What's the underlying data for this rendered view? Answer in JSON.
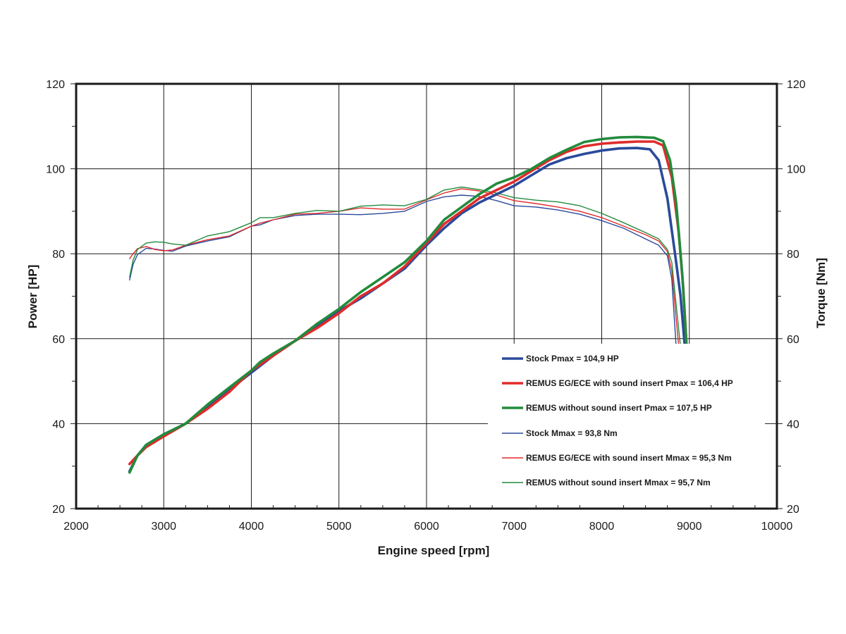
{
  "chart_data": {
    "type": "line",
    "title": "",
    "xlabel": "Engine speed [rpm]",
    "ylabel": "Power [HP]",
    "y2label": "Torque [Nm]",
    "xlim": [
      2000,
      10000
    ],
    "ylim": [
      20,
      120
    ],
    "y2lim": [
      20,
      120
    ],
    "x_ticks": [
      "2000",
      "3000",
      "4000",
      "5000",
      "6000",
      "7000",
      "8000",
      "9000",
      "10000"
    ],
    "y_ticks": [
      "20",
      "40",
      "60",
      "80",
      "100",
      "120"
    ],
    "y2_ticks": [
      "20",
      "40",
      "60",
      "80",
      "100",
      "120"
    ],
    "grid": true,
    "legend_position": "bottom-right",
    "series": [
      {
        "name": "Stock Pmax = 104,9 HP",
        "axis": "left",
        "color": "#2a4a9b",
        "weight": "thick",
        "x": [
          2610,
          2700,
          2800,
          3000,
          3250,
          3500,
          3750,
          4000,
          4250,
          4500,
          4750,
          5000,
          5250,
          5500,
          5750,
          6000,
          6200,
          6400,
          6600,
          6800,
          7000,
          7200,
          7400,
          7600,
          7800,
          8000,
          8200,
          8400,
          8550,
          8650,
          8750,
          8850,
          8900,
          8950
        ],
        "y": [
          28.8,
          32.5,
          35,
          37.5,
          40,
          44,
          48,
          52,
          56,
          59.5,
          63,
          66.5,
          69.5,
          73,
          76.5,
          82,
          86,
          89.5,
          92,
          94,
          96,
          98.5,
          101,
          102.5,
          103.5,
          104.3,
          104.8,
          104.9,
          104.6,
          102,
          93,
          78,
          70,
          58
        ]
      },
      {
        "name": "REMUS EG/ECE with sound insert Pmax = 106,4 HP",
        "axis": "left",
        "color": "#e02b2b",
        "weight": "thick",
        "x": [
          2610,
          2700,
          2800,
          3000,
          3250,
          3500,
          3750,
          4000,
          4250,
          4500,
          4750,
          5000,
          5250,
          5500,
          5750,
          6000,
          6200,
          6400,
          6600,
          6800,
          7000,
          7200,
          7400,
          7600,
          7800,
          8000,
          8200,
          8400,
          8600,
          8700,
          8800,
          8880,
          8930,
          8970
        ],
        "y": [
          30.5,
          32.5,
          34.5,
          37,
          40,
          43.5,
          47.5,
          52.5,
          56,
          59.5,
          62.5,
          66,
          70,
          73,
          77,
          82.5,
          87,
          90,
          93,
          95,
          97,
          99.5,
          102,
          104,
          105.3,
          105.9,
          106.2,
          106.4,
          106.4,
          105.5,
          98,
          85,
          72,
          58
        ]
      },
      {
        "name": "REMUS without sound insert Pmax = 107,5 HP",
        "axis": "left",
        "color": "#228b3c",
        "weight": "thick",
        "x": [
          2610,
          2700,
          2800,
          3000,
          3250,
          3500,
          3750,
          4000,
          4100,
          4250,
          4500,
          4750,
          5000,
          5250,
          5500,
          5750,
          6000,
          6200,
          6400,
          6600,
          6800,
          7000,
          7200,
          7400,
          7600,
          7800,
          8000,
          8200,
          8400,
          8600,
          8700,
          8780,
          8850,
          8920,
          8970
        ],
        "y": [
          28.5,
          32.5,
          35,
          37.5,
          40,
          44.5,
          48.5,
          52.5,
          54.5,
          56.5,
          59.5,
          63.5,
          67,
          71,
          74.5,
          78,
          83,
          88,
          91,
          94,
          96.5,
          98,
          100,
          102.5,
          104.5,
          106.3,
          107,
          107.4,
          107.5,
          107.3,
          106.5,
          102,
          92,
          75,
          58
        ]
      },
      {
        "name": "Stock Mmax = 93,8 Nm",
        "axis": "right",
        "color": "#2a4a9b",
        "weight": "thin",
        "x": [
          2610,
          2650,
          2700,
          2800,
          2900,
          3000,
          3100,
          3250,
          3500,
          3750,
          4000,
          4100,
          4250,
          4500,
          4750,
          5000,
          5250,
          5500,
          5750,
          6000,
          6200,
          6400,
          6600,
          6800,
          7000,
          7250,
          7500,
          7750,
          8000,
          8250,
          8500,
          8650,
          8750,
          8800,
          8850
        ],
        "y": [
          73.8,
          77.5,
          79.8,
          81.3,
          81.1,
          80.8,
          80.6,
          81.8,
          83,
          84,
          86.5,
          86.8,
          88,
          89,
          89.3,
          89.3,
          89.2,
          89.5,
          90,
          92.3,
          93.4,
          93.8,
          93.5,
          92.5,
          91.3,
          91,
          90.3,
          89.3,
          87.8,
          86,
          83.5,
          82,
          79.5,
          74,
          58
        ]
      },
      {
        "name": "REMUS EG/ECE with sound insert Mmax = 95,3 Nm",
        "axis": "right",
        "color": "#e02b2b",
        "weight": "thin",
        "x": [
          2610,
          2650,
          2700,
          2800,
          2900,
          3000,
          3100,
          3250,
          3500,
          3750,
          4000,
          4100,
          4250,
          4500,
          4750,
          5000,
          5250,
          5500,
          5750,
          6000,
          6200,
          6400,
          6600,
          6800,
          7000,
          7250,
          7500,
          7750,
          8000,
          8250,
          8500,
          8650,
          8750,
          8800,
          8880
        ],
        "y": [
          78.8,
          80,
          81.2,
          81.7,
          81,
          80.7,
          80.9,
          82,
          83.3,
          84.2,
          86.5,
          87.2,
          88,
          89.3,
          89.5,
          90,
          90.8,
          90.5,
          90.5,
          92.7,
          94.3,
          95.3,
          94.8,
          93.8,
          92.5,
          91.8,
          91,
          90,
          88.5,
          86.5,
          84.5,
          83,
          80.5,
          76,
          58
        ]
      },
      {
        "name": "REMUS without sound insert Mmax = 95,7 Nm",
        "axis": "right",
        "color": "#228b3c",
        "weight": "thin",
        "x": [
          2610,
          2650,
          2700,
          2800,
          2900,
          3000,
          3100,
          3250,
          3500,
          3750,
          4000,
          4100,
          4250,
          4500,
          4750,
          5000,
          5250,
          5500,
          5750,
          6000,
          6200,
          6400,
          6600,
          6800,
          7000,
          7250,
          7500,
          7750,
          8000,
          8250,
          8500,
          8650,
          8750,
          8800,
          8900
        ],
        "y": [
          74.5,
          78.5,
          81,
          82.5,
          82.8,
          82.7,
          82.3,
          82,
          84.2,
          85.2,
          87.3,
          88.5,
          88.5,
          89.5,
          90.2,
          90,
          91.2,
          91.5,
          91.3,
          92.8,
          95,
          95.7,
          95.1,
          94.3,
          93.2,
          92.6,
          92.2,
          91.3,
          89.5,
          87.3,
          85,
          83.5,
          81,
          78,
          58
        ]
      }
    ]
  }
}
